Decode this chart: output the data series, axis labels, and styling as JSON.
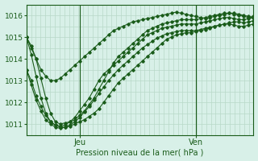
{
  "title": "",
  "xlabel": "Pression niveau de la mer( hPa )",
  "ylabel": "",
  "background_color": "#d8f0e8",
  "grid_color": "#b8d8c8",
  "line_color": "#1a5c1a",
  "marker_color": "#1a5c1a",
  "ylim": [
    1010.5,
    1016.5
  ],
  "xlim": [
    0,
    47
  ],
  "yticks": [
    1011,
    1012,
    1013,
    1014,
    1015,
    1016
  ],
  "xtick_positions": [
    11,
    35
  ],
  "xtick_labels": [
    "Jeu",
    "Ven"
  ],
  "vlines": [
    11,
    35
  ],
  "series": [
    [
      1015.0,
      1014.5,
      1014.0,
      1013.5,
      1013.2,
      1013.0,
      1013.0,
      1013.1,
      1013.3,
      1013.5,
      1013.7,
      1013.9,
      1014.1,
      1014.3,
      1014.5,
      1014.7,
      1014.9,
      1015.1,
      1015.3,
      1015.4,
      1015.5,
      1015.6,
      1015.7,
      1015.75,
      1015.8,
      1015.85,
      1015.9,
      1015.95,
      1016.0,
      1016.05,
      1016.1,
      1016.15,
      1016.1,
      1016.05,
      1016.0,
      1015.95,
      1015.9,
      1015.85,
      1015.9,
      1015.95,
      1016.0,
      1016.05,
      1016.1,
      1016.1,
      1016.05,
      1016.0,
      1015.95,
      1015.9
    ],
    [
      1015.0,
      1014.6,
      1014.0,
      1013.1,
      1012.2,
      1011.5,
      1011.1,
      1011.0,
      1011.05,
      1011.1,
      1011.2,
      1011.4,
      1011.6,
      1011.9,
      1012.2,
      1012.6,
      1013.0,
      1013.4,
      1013.8,
      1014.1,
      1014.3,
      1014.5,
      1014.7,
      1014.9,
      1015.1,
      1015.3,
      1015.4,
      1015.5,
      1015.6,
      1015.65,
      1015.7,
      1015.75,
      1015.8,
      1015.8,
      1015.8,
      1015.8,
      1015.85,
      1015.9,
      1015.95,
      1016.0,
      1016.05,
      1016.1,
      1016.1,
      1016.05,
      1016.0,
      1015.95,
      1015.9,
      1015.95
    ],
    [
      1013.5,
      1013.0,
      1012.3,
      1011.8,
      1011.4,
      1011.1,
      1010.95,
      1010.85,
      1010.85,
      1010.9,
      1011.0,
      1011.1,
      1011.2,
      1011.35,
      1011.5,
      1011.7,
      1012.0,
      1012.3,
      1012.6,
      1012.9,
      1013.1,
      1013.3,
      1013.5,
      1013.7,
      1013.9,
      1014.1,
      1014.3,
      1014.5,
      1014.7,
      1014.9,
      1015.0,
      1015.1,
      1015.15,
      1015.2,
      1015.2,
      1015.25,
      1015.3,
      1015.35,
      1015.4,
      1015.5,
      1015.55,
      1015.6,
      1015.65,
      1015.7,
      1015.7,
      1015.65,
      1015.7,
      1015.75
    ],
    [
      1015.0,
      1014.2,
      1013.2,
      1012.2,
      1011.5,
      1011.1,
      1010.95,
      1010.9,
      1010.95,
      1011.1,
      1011.3,
      1011.6,
      1011.9,
      1012.2,
      1012.6,
      1013.0,
      1013.3,
      1013.5,
      1013.7,
      1013.9,
      1014.1,
      1014.3,
      1014.5,
      1014.7,
      1014.9,
      1015.1,
      1015.2,
      1015.3,
      1015.4,
      1015.45,
      1015.5,
      1015.55,
      1015.6,
      1015.6,
      1015.6,
      1015.6,
      1015.65,
      1015.7,
      1015.75,
      1015.8,
      1015.85,
      1015.9,
      1015.9,
      1015.85,
      1015.8,
      1015.8,
      1015.85,
      1015.9
    ],
    [
      1013.5,
      1012.8,
      1012.1,
      1011.6,
      1011.2,
      1011.0,
      1010.85,
      1010.8,
      1010.85,
      1010.95,
      1011.1,
      1011.3,
      1011.55,
      1011.8,
      1012.1,
      1012.4,
      1012.7,
      1013.0,
      1013.25,
      1013.5,
      1013.7,
      1013.9,
      1014.1,
      1014.3,
      1014.5,
      1014.65,
      1014.8,
      1014.95,
      1015.05,
      1015.15,
      1015.2,
      1015.25,
      1015.3,
      1015.3,
      1015.3,
      1015.3,
      1015.35,
      1015.4,
      1015.45,
      1015.5,
      1015.55,
      1015.6,
      1015.6,
      1015.55,
      1015.5,
      1015.5,
      1015.55,
      1015.6
    ]
  ],
  "n_xgrid": 48,
  "n_ygrid": 12
}
